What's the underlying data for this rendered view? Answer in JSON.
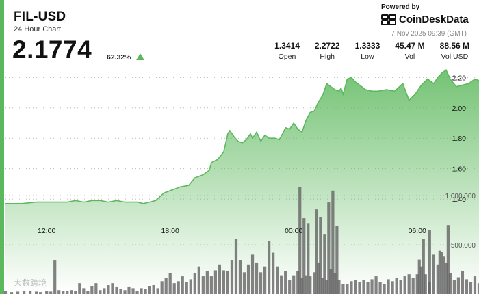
{
  "header": {
    "pair": "FIL-USD",
    "subtitle": "24 Hour Chart",
    "price": "2.1774",
    "change": "62.32%",
    "accent_color": "#5cb85c"
  },
  "branding": {
    "powered_by": "Powered by",
    "logo_text": "CoinDeskData",
    "timestamp": "7 Nov 2025 09:39 (GMT)"
  },
  "stats": [
    {
      "value": "1.3414",
      "label": "Open"
    },
    {
      "value": "2.2722",
      "label": "High"
    },
    {
      "value": "1.3333",
      "label": "Low"
    },
    {
      "value": "45.47 M",
      "label": "Vol"
    },
    {
      "value": "88.56 M",
      "label": "Vol USD"
    }
  ],
  "watermark": "大数跨境",
  "chart_data": {
    "type": "area",
    "price_ticks": [
      "2.20",
      "2.00",
      "1.80",
      "1.60",
      "1.40"
    ],
    "price_tick_values": [
      2.2,
      2.0,
      1.8,
      1.6,
      1.4
    ],
    "volume_ticks": [
      "1,000,000",
      "500,000"
    ],
    "volume_tick_values": [
      1000000,
      500000
    ],
    "time_ticks": [
      "12:00",
      "18:00",
      "00:00",
      "06:00"
    ],
    "time_tick_positions": [
      6,
      12,
      18,
      24
    ],
    "x_range": [
      4,
      27
    ],
    "price_range": [
      1.36,
      2.26
    ],
    "volume_range": [
      0,
      1250000
    ],
    "grid": true,
    "line_color": "#5cb85c",
    "bar_color": "#666666",
    "price": [
      [
        4.0,
        1.37
      ],
      [
        4.8,
        1.37
      ],
      [
        5.5,
        1.38
      ],
      [
        6.3,
        1.38
      ],
      [
        7.0,
        1.38
      ],
      [
        7.4,
        1.39
      ],
      [
        7.8,
        1.38
      ],
      [
        8.2,
        1.39
      ],
      [
        8.6,
        1.39
      ],
      [
        9.0,
        1.38
      ],
      [
        9.4,
        1.39
      ],
      [
        9.8,
        1.38
      ],
      [
        10.4,
        1.38
      ],
      [
        10.7,
        1.37
      ],
      [
        11.0,
        1.38
      ],
      [
        11.3,
        1.39
      ],
      [
        11.7,
        1.44
      ],
      [
        12.1,
        1.46
      ],
      [
        12.5,
        1.48
      ],
      [
        12.9,
        1.49
      ],
      [
        13.2,
        1.54
      ],
      [
        13.6,
        1.56
      ],
      [
        13.9,
        1.59
      ],
      [
        14.0,
        1.64
      ],
      [
        14.3,
        1.66
      ],
      [
        14.6,
        1.71
      ],
      [
        14.8,
        1.83
      ],
      [
        14.9,
        1.85
      ],
      [
        15.1,
        1.81
      ],
      [
        15.3,
        1.78
      ],
      [
        15.5,
        1.77
      ],
      [
        15.7,
        1.79
      ],
      [
        15.9,
        1.83
      ],
      [
        16.0,
        1.8
      ],
      [
        16.2,
        1.84
      ],
      [
        16.4,
        1.78
      ],
      [
        16.6,
        1.82
      ],
      [
        16.8,
        1.8
      ],
      [
        17.1,
        1.8
      ],
      [
        17.3,
        1.79
      ],
      [
        17.5,
        1.84
      ],
      [
        17.6,
        1.87
      ],
      [
        17.8,
        1.86
      ],
      [
        18.0,
        1.9
      ],
      [
        18.2,
        1.86
      ],
      [
        18.4,
        1.84
      ],
      [
        18.6,
        1.92
      ],
      [
        18.8,
        1.97
      ],
      [
        19.0,
        1.98
      ],
      [
        19.2,
        2.04
      ],
      [
        19.4,
        2.08
      ],
      [
        19.6,
        2.16
      ],
      [
        19.8,
        2.14
      ],
      [
        20.0,
        2.12
      ],
      [
        20.2,
        2.11
      ],
      [
        20.3,
        2.13
      ],
      [
        20.4,
        2.09
      ],
      [
        20.6,
        2.19
      ],
      [
        20.8,
        2.2
      ],
      [
        21.0,
        2.17
      ],
      [
        21.2,
        2.15
      ],
      [
        21.5,
        2.12
      ],
      [
        21.8,
        2.11
      ],
      [
        22.1,
        2.11
      ],
      [
        22.5,
        2.12
      ],
      [
        22.9,
        2.11
      ],
      [
        23.3,
        2.16
      ],
      [
        23.6,
        2.05
      ],
      [
        23.9,
        2.09
      ],
      [
        24.2,
        2.15
      ],
      [
        24.5,
        2.19
      ],
      [
        24.8,
        2.16
      ],
      [
        25.0,
        2.2
      ],
      [
        25.2,
        2.23
      ],
      [
        25.4,
        2.25
      ],
      [
        25.6,
        2.19
      ],
      [
        25.9,
        2.14
      ],
      [
        26.2,
        2.15
      ],
      [
        26.5,
        2.16
      ],
      [
        26.8,
        2.19
      ],
      [
        27.0,
        2.18
      ]
    ],
    "volume": [
      [
        4.0,
        30000
      ],
      [
        4.3,
        20000
      ],
      [
        4.6,
        25000
      ],
      [
        4.9,
        35000
      ],
      [
        5.2,
        30000
      ],
      [
        5.5,
        25000
      ],
      [
        5.7,
        20000
      ],
      [
        6.0,
        30000
      ],
      [
        6.2,
        25000
      ],
      [
        6.4,
        340000
      ],
      [
        6.6,
        40000
      ],
      [
        6.8,
        30000
      ],
      [
        7.0,
        30000
      ],
      [
        7.2,
        40000
      ],
      [
        7.4,
        30000
      ],
      [
        7.6,
        110000
      ],
      [
        7.8,
        60000
      ],
      [
        8.0,
        30000
      ],
      [
        8.2,
        80000
      ],
      [
        8.4,
        110000
      ],
      [
        8.6,
        40000
      ],
      [
        8.8,
        60000
      ],
      [
        9.0,
        90000
      ],
      [
        9.2,
        110000
      ],
      [
        9.4,
        70000
      ],
      [
        9.6,
        50000
      ],
      [
        9.8,
        40000
      ],
      [
        10.0,
        70000
      ],
      [
        10.2,
        60000
      ],
      [
        10.4,
        30000
      ],
      [
        10.6,
        60000
      ],
      [
        10.8,
        50000
      ],
      [
        11.0,
        80000
      ],
      [
        11.2,
        90000
      ],
      [
        11.4,
        60000
      ],
      [
        11.6,
        130000
      ],
      [
        11.8,
        160000
      ],
      [
        12.0,
        210000
      ],
      [
        12.2,
        110000
      ],
      [
        12.4,
        130000
      ],
      [
        12.6,
        180000
      ],
      [
        12.8,
        120000
      ],
      [
        13.0,
        150000
      ],
      [
        13.2,
        210000
      ],
      [
        13.4,
        280000
      ],
      [
        13.6,
        180000
      ],
      [
        13.8,
        230000
      ],
      [
        14.0,
        180000
      ],
      [
        14.2,
        240000
      ],
      [
        14.4,
        300000
      ],
      [
        14.6,
        240000
      ],
      [
        14.8,
        230000
      ],
      [
        15.0,
        340000
      ],
      [
        15.2,
        560000
      ],
      [
        15.4,
        340000
      ],
      [
        15.6,
        220000
      ],
      [
        15.8,
        300000
      ],
      [
        16.0,
        400000
      ],
      [
        16.2,
        320000
      ],
      [
        16.4,
        220000
      ],
      [
        16.6,
        280000
      ],
      [
        16.8,
        540000
      ],
      [
        17.0,
        420000
      ],
      [
        17.2,
        280000
      ],
      [
        17.4,
        190000
      ],
      [
        17.6,
        230000
      ],
      [
        17.8,
        140000
      ],
      [
        18.0,
        190000
      ],
      [
        18.2,
        230000
      ],
      [
        18.4,
        160000
      ],
      [
        18.6,
        190000
      ],
      [
        18.8,
        180000
      ],
      [
        19.0,
        220000
      ],
      [
        19.2,
        320000
      ],
      [
        19.4,
        160000
      ],
      [
        19.6,
        140000
      ],
      [
        19.8,
        250000
      ],
      [
        20.0,
        210000
      ],
      [
        20.2,
        140000
      ],
      [
        20.4,
        100000
      ],
      [
        20.6,
        100000
      ],
      [
        20.8,
        130000
      ],
      [
        21.0,
        140000
      ],
      [
        21.2,
        120000
      ],
      [
        21.4,
        140000
      ],
      [
        21.6,
        120000
      ],
      [
        21.8,
        150000
      ],
      [
        22.0,
        180000
      ],
      [
        22.2,
        120000
      ],
      [
        22.4,
        100000
      ],
      [
        22.6,
        150000
      ],
      [
        22.8,
        130000
      ],
      [
        23.0,
        160000
      ],
      [
        23.2,
        140000
      ],
      [
        23.4,
        180000
      ],
      [
        23.6,
        200000
      ],
      [
        23.8,
        160000
      ],
      [
        24.0,
        200000
      ],
      [
        24.2,
        280000
      ],
      [
        24.4,
        200000
      ],
      [
        24.6,
        120000
      ],
      [
        24.8,
        400000
      ],
      [
        25.0,
        300000
      ],
      [
        25.2,
        430000
      ],
      [
        25.4,
        320000
      ],
      [
        25.6,
        210000
      ],
      [
        25.8,
        140000
      ],
      [
        26.0,
        170000
      ],
      [
        26.2,
        230000
      ],
      [
        26.4,
        150000
      ],
      [
        26.6,
        120000
      ],
      [
        26.8,
        180000
      ],
      [
        27.0,
        110000
      ]
    ],
    "volume_spikes": [
      [
        18.3,
        1090000
      ],
      [
        18.5,
        770000
      ],
      [
        18.7,
        720000
      ],
      [
        19.1,
        860000
      ],
      [
        19.3,
        780000
      ],
      [
        19.5,
        610000
      ],
      [
        19.7,
        930000
      ],
      [
        19.9,
        1050000
      ],
      [
        20.1,
        690000
      ],
      [
        24.1,
        350000
      ],
      [
        24.3,
        560000
      ],
      [
        24.6,
        650000
      ],
      [
        25.1,
        440000
      ],
      [
        25.3,
        380000
      ],
      [
        25.5,
        700000
      ]
    ]
  }
}
